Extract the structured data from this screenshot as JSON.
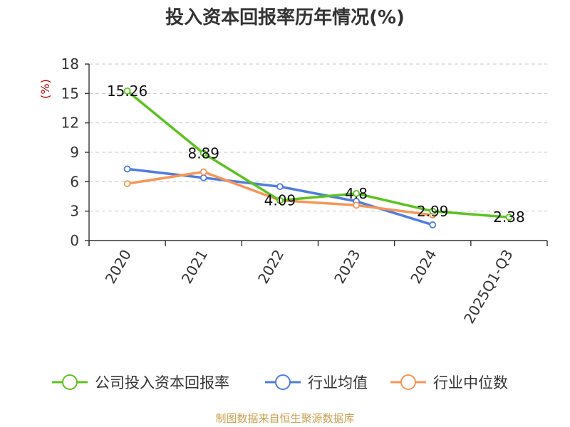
{
  "chart_data": {
    "type": "line",
    "title": "投入资本回报率历年情况(%)",
    "ylabel": "(%)",
    "categories": [
      "2020",
      "2021",
      "2022",
      "2023",
      "2024",
      "2025Q1-Q3"
    ],
    "ylim": [
      0,
      18
    ],
    "yticks": [
      0,
      3,
      6,
      9,
      12,
      15,
      18
    ],
    "grid": true,
    "legend_position": "bottom",
    "series": [
      {
        "name": "公司投入资本回报率",
        "color": "#5dc221",
        "values": [
          15.26,
          8.89,
          4.09,
          4.8,
          2.99,
          2.38
        ],
        "labels": [
          "15.26",
          "8.89",
          "4.09",
          "4.8",
          "2.99",
          "2.38"
        ]
      },
      {
        "name": "行业均值",
        "color": "#4f7ce0",
        "values": [
          7.3,
          6.4,
          5.5,
          4.0,
          1.6,
          null
        ]
      },
      {
        "name": "行业中位数",
        "color": "#f79556",
        "values": [
          5.8,
          7.0,
          4.1,
          3.6,
          2.6,
          null
        ]
      }
    ]
  },
  "source_text": "制图数据来自恒生聚源数据库"
}
